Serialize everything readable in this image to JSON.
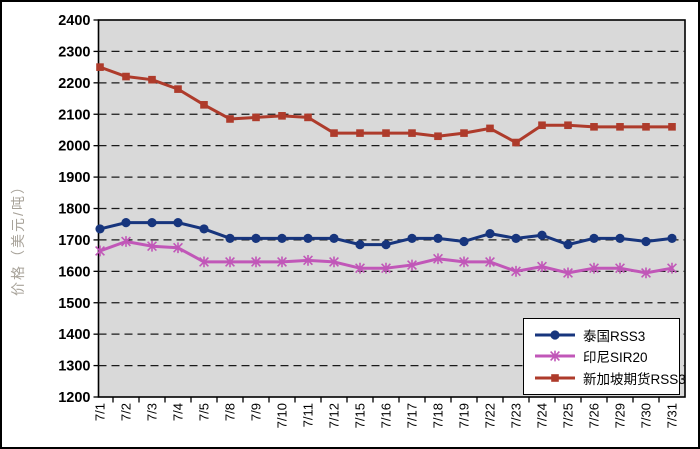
{
  "y_axis_title": "价格（美元/吨）",
  "chart_data": {
    "type": "line",
    "title": "",
    "xlabel": "",
    "ylabel": "价格（美元/吨）",
    "ylim": [
      1200,
      2400
    ],
    "y_tick_step": 100,
    "y_tick_labels": [
      "2400",
      "2300",
      "2200",
      "2100",
      "2000",
      "1900",
      "1800",
      "1700",
      "1600",
      "1500",
      "1400",
      "1300",
      "1200"
    ],
    "grid": "horizontal-dashed",
    "plot_bg": "#d9d9d9",
    "grid_color": "#1a1a1a",
    "legend_position": "inside-bottom-right",
    "categories": [
      "7/1",
      "7/2",
      "7/3",
      "7/4",
      "7/5",
      "7/8",
      "7/9",
      "7/10",
      "7/11",
      "7/12",
      "7/15",
      "7/16",
      "7/17",
      "7/18",
      "7/19",
      "7/22",
      "7/23",
      "7/24",
      "7/25",
      "7/26",
      "7/29",
      "7/30",
      "7/31"
    ],
    "series": [
      {
        "name": "泰国RSS3",
        "marker": "circle",
        "color": "#17357d",
        "values": [
          1735,
          1755,
          1755,
          1755,
          1735,
          1705,
          1705,
          1705,
          1705,
          1705,
          1685,
          1685,
          1705,
          1705,
          1695,
          1720,
          1705,
          1715,
          1685,
          1705,
          1705,
          1695,
          1705
        ]
      },
      {
        "name": "印尼SIR20",
        "marker": "asterisk",
        "color": "#c157b8",
        "values": [
          1665,
          1695,
          1680,
          1675,
          1630,
          1630,
          1630,
          1630,
          1635,
          1630,
          1610,
          1610,
          1620,
          1640,
          1630,
          1630,
          1600,
          1615,
          1595,
          1610,
          1610,
          1595,
          1610
        ]
      },
      {
        "name": "新加坡期货RSS3",
        "marker": "square",
        "color": "#ae3b2b",
        "values": [
          2250,
          2220,
          2210,
          2180,
          2130,
          2085,
          2090,
          2095,
          2090,
          2040,
          2040,
          2040,
          2040,
          2030,
          2040,
          2055,
          2010,
          2065,
          2065,
          2060,
          2060,
          2060,
          2060
        ]
      }
    ]
  }
}
